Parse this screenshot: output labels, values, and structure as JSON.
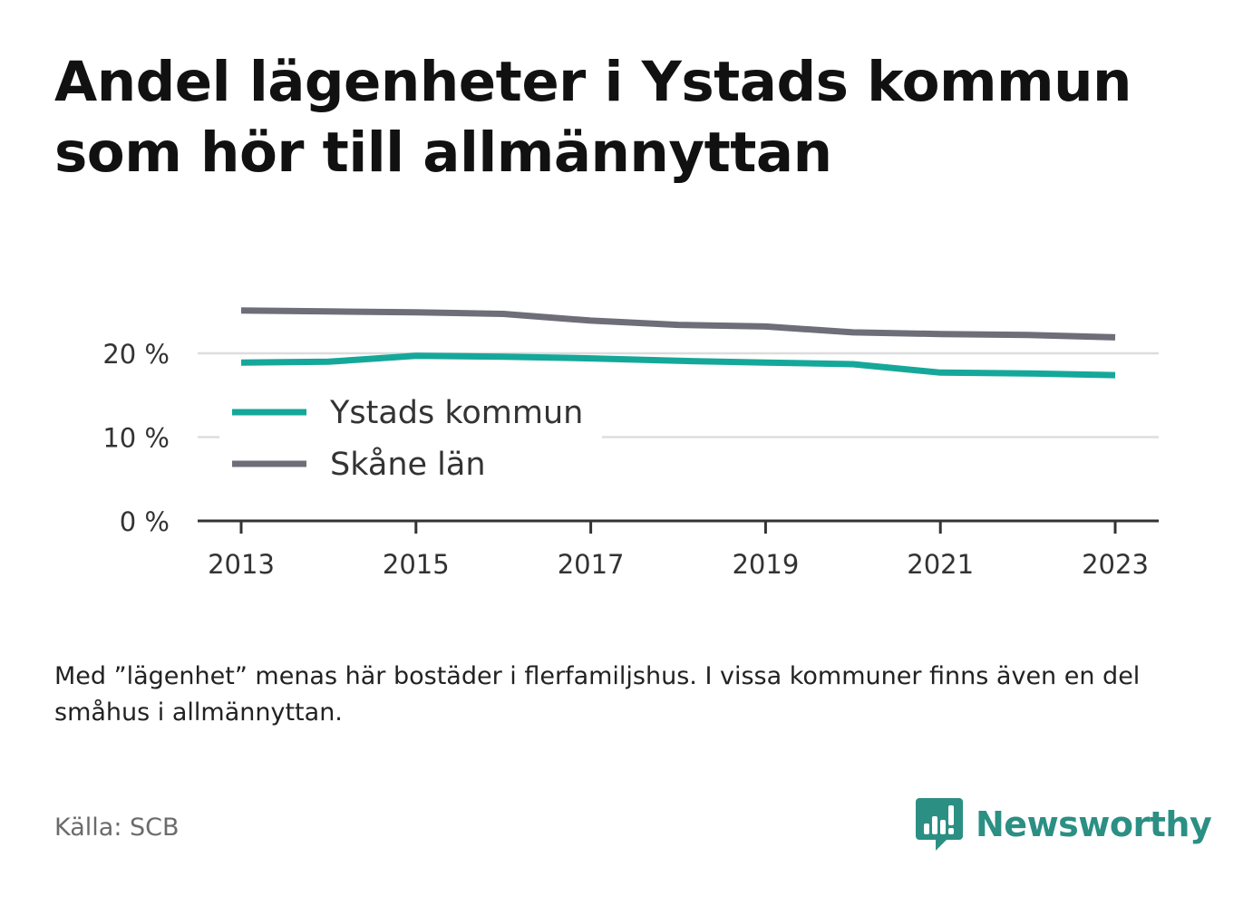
{
  "title": "Andel lägenheter i Ystads kommun som hör till allmännyttan",
  "note": "Med ”lägenhet” menas här bostäder i flerfamiljshus. I vissa kommuner finns även en del småhus i allmännyttan.",
  "source": "Källa: SCB",
  "brand": "Newsworthy",
  "colors": {
    "ystad": "#15a89a",
    "skane": "#6e6e78",
    "grid": "#dddddd",
    "axis": "#333333",
    "brand": "#2b8f84"
  },
  "chart_data": {
    "type": "line",
    "x": [
      2013,
      2014,
      2015,
      2016,
      2017,
      2018,
      2019,
      2020,
      2021,
      2022,
      2023
    ],
    "x_ticks": [
      "2013",
      "2015",
      "2017",
      "2019",
      "2021",
      "2023"
    ],
    "x_tick_values": [
      2013,
      2015,
      2017,
      2019,
      2021,
      2023
    ],
    "y_ticks": [
      "0 %",
      "10 %",
      "20 %"
    ],
    "y_tick_values": [
      0,
      10,
      20
    ],
    "ylim": [
      0,
      27
    ],
    "grid": true,
    "legend_position": "left, inside plot",
    "series": [
      {
        "name": "Ystads kommun",
        "color": "#15a89a",
        "values": [
          18.9,
          19.0,
          19.7,
          19.6,
          19.4,
          19.1,
          18.9,
          18.7,
          17.7,
          17.6,
          17.4
        ]
      },
      {
        "name": "Skåne län",
        "color": "#6e6e78",
        "values": [
          25.1,
          25.0,
          24.9,
          24.7,
          23.9,
          23.4,
          23.2,
          22.5,
          22.3,
          22.2,
          21.9
        ]
      }
    ]
  }
}
